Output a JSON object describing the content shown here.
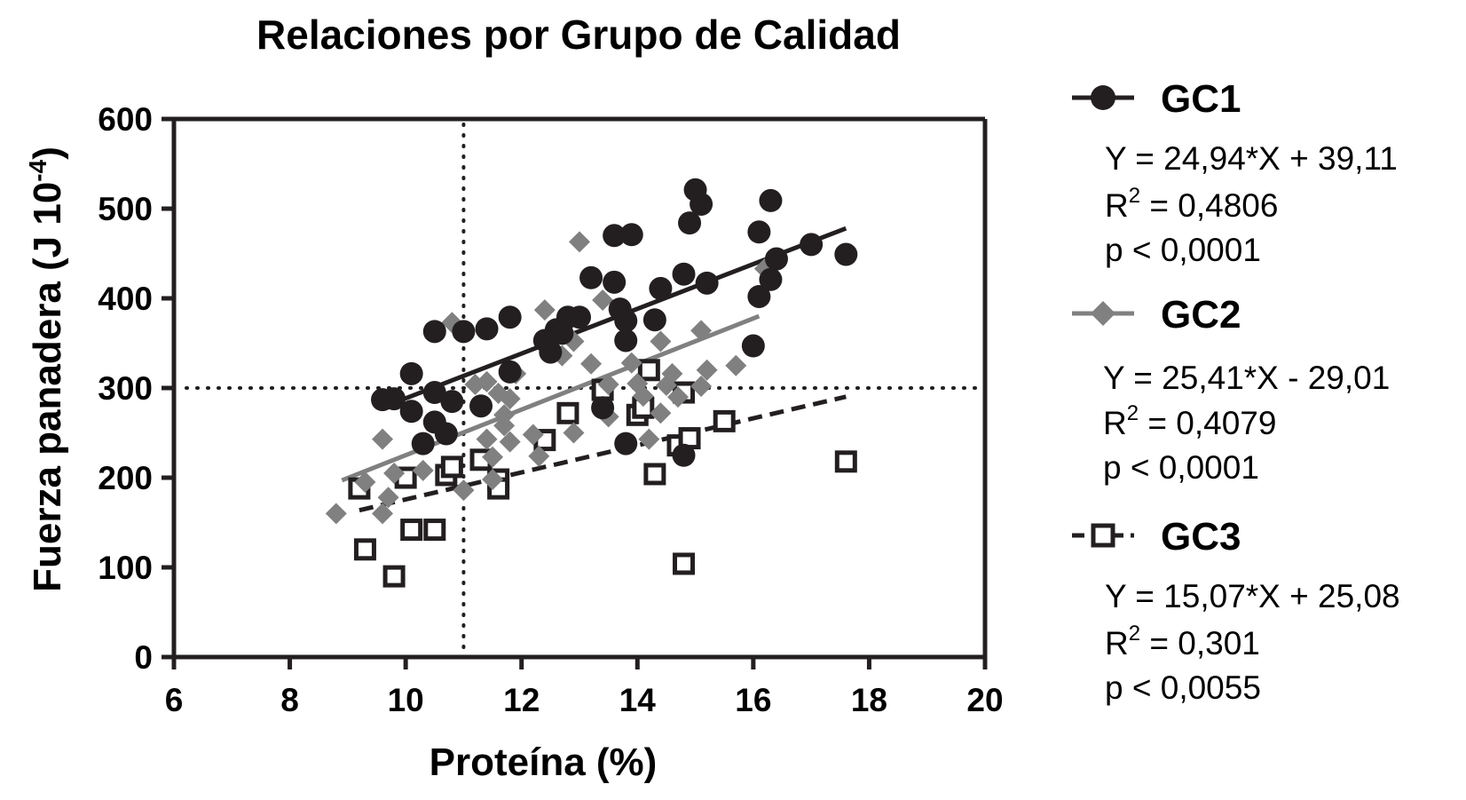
{
  "chart_data": {
    "type": "scatter",
    "title": "Relaciones por Grupo de Calidad",
    "xlabel": "Proteína (%)",
    "ylabel_main": "Fuerza panadera (J 10",
    "ylabel_sup": "-4",
    "ylabel_close": ")",
    "xlim": [
      6,
      20
    ],
    "ylim": [
      0,
      600
    ],
    "xticks": [
      "6",
      "8",
      "10",
      "12",
      "14",
      "16",
      "18",
      "20"
    ],
    "yticks": [
      "0",
      "100",
      "200",
      "300",
      "400",
      "500",
      "600"
    ],
    "reference_lines": {
      "x": 11,
      "y": 300,
      "style": "dotted"
    },
    "legend_position": "right",
    "series": [
      {
        "name": "GC1",
        "marker": "circle",
        "color": "#231f20",
        "fit_style": "solid",
        "fit": {
          "slope": 24.94,
          "intercept": 39.11,
          "x_range": [
            9.7,
            17.6
          ]
        },
        "equation": "Y = 24,94*X + 39,11",
        "r2_label": "R",
        "r2_sup": "2",
        "r2_value": " = 0,4806",
        "p_text": "p < 0,0001",
        "points": [
          [
            9.6,
            287
          ],
          [
            9.8,
            288
          ],
          [
            10.1,
            316
          ],
          [
            10.1,
            274
          ],
          [
            10.3,
            238
          ],
          [
            10.5,
            295
          ],
          [
            10.5,
            363
          ],
          [
            10.5,
            262
          ],
          [
            10.7,
            249
          ],
          [
            10.8,
            285
          ],
          [
            11.0,
            363
          ],
          [
            11.3,
            280
          ],
          [
            11.4,
            366
          ],
          [
            11.8,
            379
          ],
          [
            11.8,
            318
          ],
          [
            12.4,
            353
          ],
          [
            12.5,
            340
          ],
          [
            12.6,
            365
          ],
          [
            12.7,
            361
          ],
          [
            12.8,
            379
          ],
          [
            13.0,
            379
          ],
          [
            13.2,
            423
          ],
          [
            13.4,
            278
          ],
          [
            13.6,
            418
          ],
          [
            13.6,
            470
          ],
          [
            13.7,
            388
          ],
          [
            13.8,
            353
          ],
          [
            13.8,
            375
          ],
          [
            13.8,
            238
          ],
          [
            13.9,
            471
          ],
          [
            14.3,
            376
          ],
          [
            14.4,
            411
          ],
          [
            14.8,
            427
          ],
          [
            14.8,
            225
          ],
          [
            14.9,
            484
          ],
          [
            15.0,
            521
          ],
          [
            15.1,
            505
          ],
          [
            15.2,
            417
          ],
          [
            16.0,
            347
          ],
          [
            16.1,
            402
          ],
          [
            16.1,
            474
          ],
          [
            16.3,
            509
          ],
          [
            16.3,
            421
          ],
          [
            16.4,
            444
          ],
          [
            17.0,
            460
          ],
          [
            17.6,
            449
          ]
        ]
      },
      {
        "name": "GC2",
        "marker": "diamond",
        "color": "#808080",
        "fit_style": "solid",
        "fit": {
          "slope": 25.41,
          "intercept": -29.01,
          "x_range": [
            8.9,
            16.1
          ]
        },
        "equation": "Y = 25,41*X - 29,01",
        "r2_label": "R",
        "r2_sup": "2",
        "r2_value": " = 0,4079",
        "p_text": "p < 0,0001",
        "points": [
          [
            8.8,
            160
          ],
          [
            9.3,
            195
          ],
          [
            9.6,
            243
          ],
          [
            9.6,
            160
          ],
          [
            9.7,
            178
          ],
          [
            9.8,
            205
          ],
          [
            10.3,
            208
          ],
          [
            10.8,
            373
          ],
          [
            11.0,
            186
          ],
          [
            11.2,
            304
          ],
          [
            11.4,
            307
          ],
          [
            11.4,
            243
          ],
          [
            11.5,
            198
          ],
          [
            11.5,
            223
          ],
          [
            11.6,
            294
          ],
          [
            11.7,
            270
          ],
          [
            11.7,
            258
          ],
          [
            11.8,
            288
          ],
          [
            11.8,
            240
          ],
          [
            11.9,
            316
          ],
          [
            12.2,
            248
          ],
          [
            12.3,
            224
          ],
          [
            12.4,
            387
          ],
          [
            12.7,
            336
          ],
          [
            12.9,
            352
          ],
          [
            12.9,
            250
          ],
          [
            13.0,
            463
          ],
          [
            13.2,
            327
          ],
          [
            13.4,
            398
          ],
          [
            13.5,
            304
          ],
          [
            13.5,
            268
          ],
          [
            13.9,
            328
          ],
          [
            14.0,
            305
          ],
          [
            14.1,
            291
          ],
          [
            14.2,
            243
          ],
          [
            14.4,
            352
          ],
          [
            14.4,
            272
          ],
          [
            14.5,
            303
          ],
          [
            14.6,
            316
          ],
          [
            14.7,
            290
          ],
          [
            15.1,
            364
          ],
          [
            15.1,
            302
          ],
          [
            15.2,
            320
          ],
          [
            15.7,
            325
          ],
          [
            16.2,
            433
          ]
        ]
      },
      {
        "name": "GC3",
        "marker": "square",
        "color": "#231f20",
        "fit_style": "dashed",
        "fit": {
          "slope": 15.07,
          "intercept": 25.08,
          "x_range": [
            9.2,
            17.6
          ]
        },
        "equation": "Y = 15,07*X + 25,08",
        "r2_label": "R",
        "r2_sup": "2",
        "r2_value": " = 0,301",
        "p_text": "p < 0,0055",
        "points": [
          [
            9.2,
            188
          ],
          [
            9.3,
            120
          ],
          [
            9.8,
            90
          ],
          [
            10.0,
            200
          ],
          [
            10.1,
            142
          ],
          [
            10.5,
            142
          ],
          [
            10.7,
            203
          ],
          [
            10.8,
            212
          ],
          [
            11.3,
            220
          ],
          [
            11.6,
            198
          ],
          [
            11.6,
            188
          ],
          [
            12.4,
            242
          ],
          [
            12.8,
            272
          ],
          [
            13.4,
            298
          ],
          [
            14.0,
            270
          ],
          [
            14.1,
            278
          ],
          [
            14.2,
            320
          ],
          [
            14.3,
            204
          ],
          [
            14.7,
            236
          ],
          [
            14.8,
            295
          ],
          [
            14.8,
            104
          ],
          [
            14.9,
            244
          ],
          [
            15.5,
            263
          ],
          [
            17.6,
            218
          ]
        ]
      }
    ]
  }
}
